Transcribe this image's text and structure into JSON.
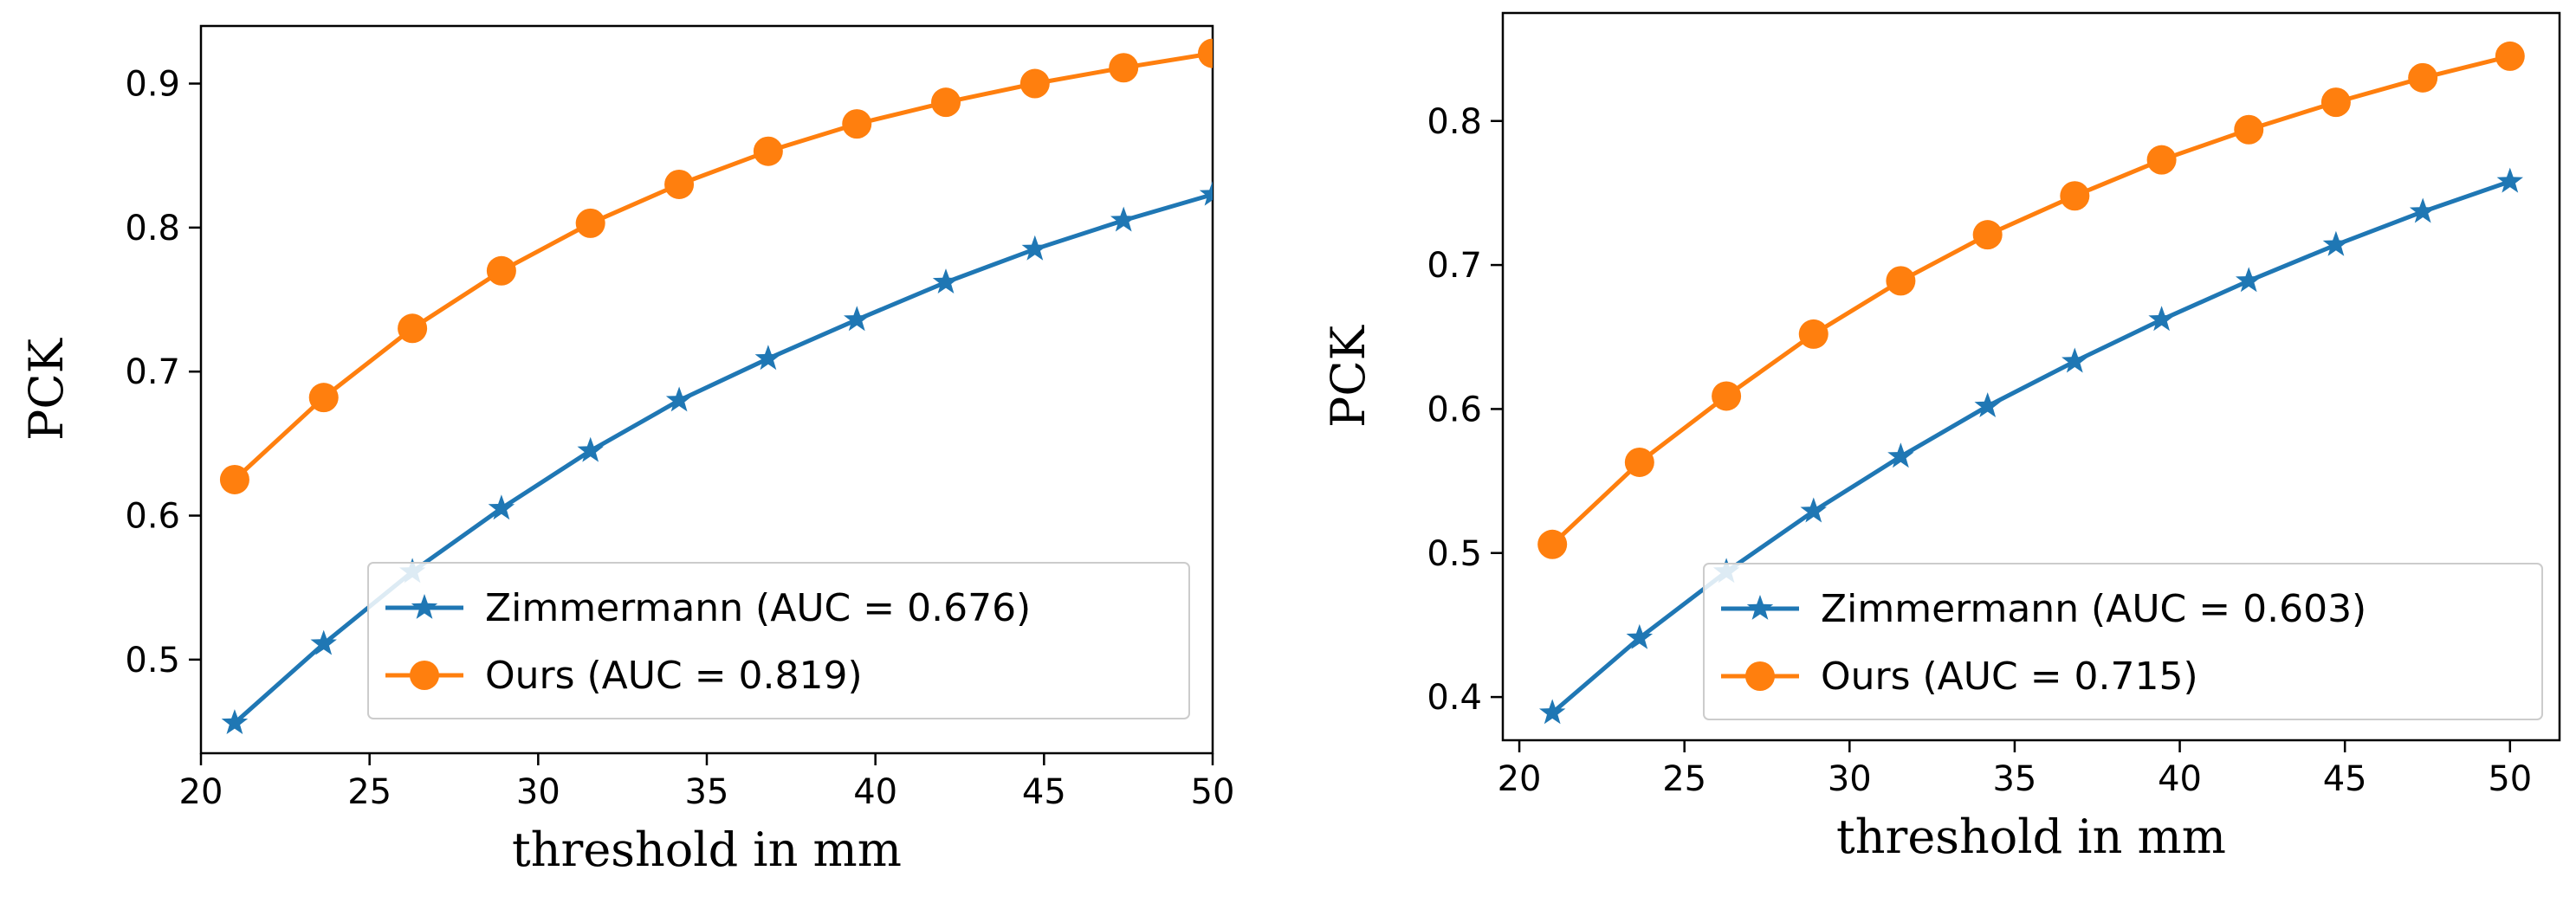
{
  "chart_data": [
    {
      "type": "line",
      "ylabel": "PCK",
      "xlabel": "threshold in mm",
      "xlim": [
        20,
        50
      ],
      "ylim": [
        0.435,
        0.94
      ],
      "xticks": [
        "20",
        "25",
        "30",
        "35",
        "40",
        "45",
        "50"
      ],
      "yticks": [
        "0.5",
        "0.6",
        "0.7",
        "0.8",
        "0.9"
      ],
      "x": [
        21,
        23.64,
        26.27,
        28.91,
        31.55,
        34.18,
        36.82,
        39.45,
        42.09,
        44.73,
        47.36,
        50
      ],
      "legend": "lower-right",
      "grid": false,
      "series": [
        {
          "name": "Zimmermann (AUC = 0.676)",
          "color": "#1f77b4",
          "marker": "star",
          "values": [
            0.456,
            0.511,
            0.561,
            0.605,
            0.645,
            0.68,
            0.709,
            0.736,
            0.762,
            0.785,
            0.805,
            0.823
          ]
        },
        {
          "name": "Ours (AUC = 0.819)",
          "color": "#ff7f0e",
          "marker": "circle",
          "values": [
            0.625,
            0.682,
            0.73,
            0.77,
            0.803,
            0.83,
            0.853,
            0.872,
            0.887,
            0.9,
            0.911,
            0.921
          ]
        }
      ]
    },
    {
      "type": "line",
      "ylabel": "PCK",
      "xlabel": "threshold in mm",
      "xlim": [
        19.5,
        51.5
      ],
      "ylim": [
        0.37,
        0.875
      ],
      "xticks": [
        "20",
        "25",
        "30",
        "35",
        "40",
        "45",
        "50"
      ],
      "yticks": [
        "0.4",
        "0.5",
        "0.6",
        "0.7",
        "0.8"
      ],
      "x": [
        21,
        23.64,
        26.27,
        28.91,
        31.55,
        34.18,
        36.82,
        39.45,
        42.09,
        44.73,
        47.36,
        50
      ],
      "legend": "lower-right",
      "grid": false,
      "series": [
        {
          "name": "Zimmermann (AUC = 0.603)",
          "color": "#1f77b4",
          "marker": "star",
          "values": [
            0.389,
            0.441,
            0.487,
            0.529,
            0.567,
            0.602,
            0.633,
            0.662,
            0.689,
            0.714,
            0.737,
            0.758
          ]
        },
        {
          "name": "Ours (AUC = 0.715)",
          "color": "#ff7f0e",
          "marker": "circle",
          "values": [
            0.506,
            0.563,
            0.609,
            0.652,
            0.689,
            0.721,
            0.748,
            0.773,
            0.794,
            0.813,
            0.83,
            0.845
          ]
        }
      ]
    }
  ]
}
